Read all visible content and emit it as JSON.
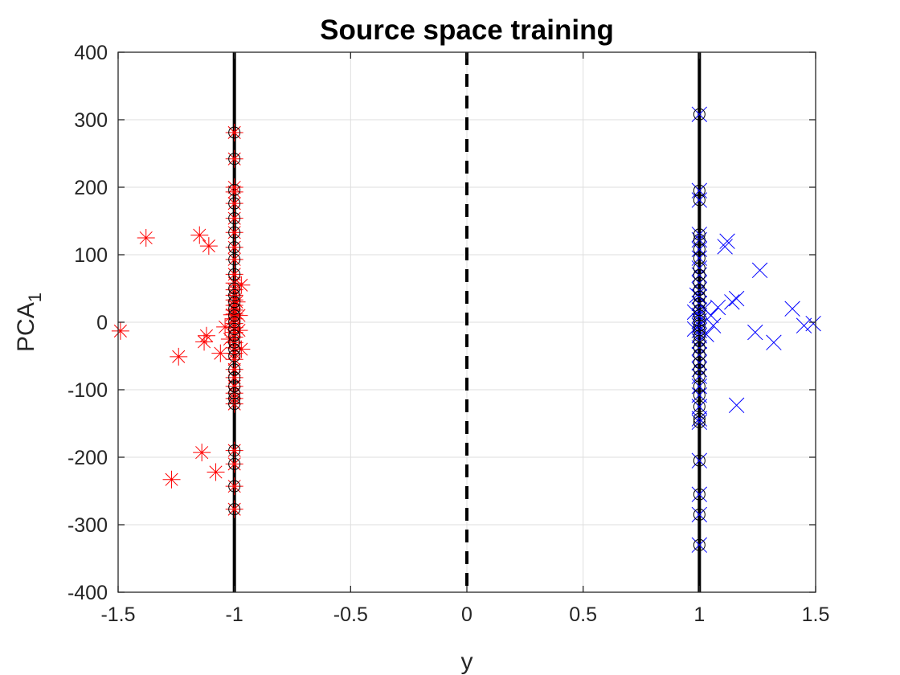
{
  "chart_data": {
    "type": "scatter",
    "title": "Source space training",
    "xlabel": "y",
    "ylabel": "PCA",
    "ylabel_subscript": "1",
    "xlim": [
      -1.5,
      1.5
    ],
    "ylim": [
      -400,
      400
    ],
    "xticks": [
      -1.5,
      -1,
      -0.5,
      0,
      0.5,
      1,
      1.5
    ],
    "xtick_labels": [
      "-1.5",
      "-1",
      "-0.5",
      "0",
      "0.5",
      "1",
      "1.5"
    ],
    "yticks": [
      -400,
      -300,
      -200,
      -100,
      0,
      100,
      200,
      300,
      400
    ],
    "ytick_labels": [
      "-400",
      "-300",
      "-200",
      "-100",
      "0",
      "100",
      "200",
      "300",
      "400"
    ],
    "grid": true,
    "colors": {
      "negative": "#ff0000",
      "positive": "#0000ff",
      "circle": "#000000",
      "line": "#000000",
      "grid": "#dedede"
    },
    "reference_lines": [
      {
        "x": -1,
        "style": "solid"
      },
      {
        "x": 0,
        "style": "dashed"
      },
      {
        "x": 1,
        "style": "solid"
      }
    ],
    "series": [
      {
        "marker": "star",
        "color": "#ff0000",
        "points": [
          [
            -1.49,
            -13
          ],
          [
            -1.38,
            125
          ],
          [
            -1.27,
            -233
          ],
          [
            -1.24,
            -51
          ],
          [
            -1.15,
            129
          ],
          [
            -1.14,
            -193
          ],
          [
            -1.13,
            -29
          ],
          [
            -1.12,
            -20
          ],
          [
            -1.11,
            113
          ],
          [
            -1.08,
            -222
          ],
          [
            -1.06,
            -46
          ],
          [
            -1.04,
            -7
          ],
          [
            -1.02,
            -25
          ],
          [
            -1.01,
            11
          ],
          [
            -1.0,
            281
          ],
          [
            -1.0,
            242
          ],
          [
            -1.0,
            200
          ],
          [
            -1.0,
            193
          ],
          [
            -1.0,
            176
          ],
          [
            -1.0,
            154
          ],
          [
            -1.0,
            133
          ],
          [
            -1.0,
            111
          ],
          [
            -1.0,
            93
          ],
          [
            -1.0,
            71
          ],
          [
            -1.0,
            58
          ],
          [
            -1.0,
            48
          ],
          [
            -1.0,
            40
          ],
          [
            -1.0,
            33
          ],
          [
            -1.0,
            25
          ],
          [
            -1.0,
            18
          ],
          [
            -1.0,
            12
          ],
          [
            -1.0,
            5
          ],
          [
            -1.0,
            -2
          ],
          [
            -1.0,
            -8
          ],
          [
            -1.0,
            -15
          ],
          [
            -1.0,
            -22
          ],
          [
            -1.0,
            -30
          ],
          [
            -1.0,
            -38
          ],
          [
            -1.0,
            -46
          ],
          [
            -1.0,
            -55
          ],
          [
            -1.0,
            -70
          ],
          [
            -1.0,
            -82
          ],
          [
            -1.0,
            -95
          ],
          [
            -1.0,
            -105
          ],
          [
            -1.0,
            -113
          ],
          [
            -1.0,
            -121
          ],
          [
            -1.0,
            -190
          ],
          [
            -1.0,
            -210
          ],
          [
            -1.0,
            -243
          ],
          [
            -1.0,
            -277
          ],
          [
            -0.99,
            30
          ],
          [
            -0.98,
            10
          ],
          [
            -0.98,
            -12
          ],
          [
            -0.97,
            -40
          ],
          [
            -0.97,
            55
          ]
        ]
      },
      {
        "marker": "x",
        "color": "#0000ff",
        "points": [
          [
            1.0,
            308
          ],
          [
            1.0,
            195
          ],
          [
            1.0,
            181
          ],
          [
            1.0,
            130
          ],
          [
            1.0,
            122
          ],
          [
            1.0,
            108
          ],
          [
            1.0,
            95
          ],
          [
            1.0,
            80
          ],
          [
            1.0,
            70
          ],
          [
            1.0,
            58
          ],
          [
            1.0,
            48
          ],
          [
            1.0,
            38
          ],
          [
            1.0,
            28
          ],
          [
            1.0,
            18
          ],
          [
            1.0,
            10
          ],
          [
            1.0,
            2
          ],
          [
            1.0,
            -5
          ],
          [
            1.0,
            -12
          ],
          [
            1.0,
            -20
          ],
          [
            1.0,
            -28
          ],
          [
            1.0,
            -38
          ],
          [
            1.0,
            -48
          ],
          [
            1.0,
            -60
          ],
          [
            1.0,
            -70
          ],
          [
            1.0,
            -80
          ],
          [
            1.0,
            -95
          ],
          [
            1.0,
            -108
          ],
          [
            1.0,
            -125
          ],
          [
            1.0,
            -143
          ],
          [
            1.0,
            -148
          ],
          [
            1.0,
            -205
          ],
          [
            1.0,
            -255
          ],
          [
            1.0,
            -285
          ],
          [
            1.0,
            -330
          ],
          [
            0.99,
            40
          ],
          [
            0.98,
            15
          ],
          [
            0.98,
            -10
          ],
          [
            1.02,
            20
          ],
          [
            1.03,
            -18
          ],
          [
            1.05,
            10
          ],
          [
            1.06,
            -5
          ],
          [
            1.08,
            22
          ],
          [
            1.11,
            112
          ],
          [
            1.12,
            120
          ],
          [
            1.14,
            30
          ],
          [
            1.16,
            35
          ],
          [
            1.16,
            -123
          ],
          [
            1.24,
            -15
          ],
          [
            1.26,
            77
          ],
          [
            1.32,
            -30
          ],
          [
            1.4,
            20
          ],
          [
            1.45,
            -5
          ],
          [
            1.49,
            -2
          ]
        ]
      },
      {
        "marker": "circle",
        "color": "#000000",
        "points": [
          [
            -1.0,
            281
          ],
          [
            -1.0,
            242
          ],
          [
            -1.0,
            196
          ],
          [
            -1.0,
            176
          ],
          [
            -1.0,
            154
          ],
          [
            -1.0,
            133
          ],
          [
            -1.0,
            111
          ],
          [
            -1.0,
            93
          ],
          [
            -1.0,
            71
          ],
          [
            -1.0,
            50
          ],
          [
            -1.0,
            40
          ],
          [
            -1.0,
            30
          ],
          [
            -1.0,
            20
          ],
          [
            -1.0,
            10
          ],
          [
            -1.0,
            0
          ],
          [
            -1.0,
            -10
          ],
          [
            -1.0,
            -20
          ],
          [
            -1.0,
            -30
          ],
          [
            -1.0,
            -40
          ],
          [
            -1.0,
            -50
          ],
          [
            -1.0,
            -70
          ],
          [
            -1.0,
            -82
          ],
          [
            -1.0,
            -95
          ],
          [
            -1.0,
            -105
          ],
          [
            -1.0,
            -113
          ],
          [
            -1.0,
            -121
          ],
          [
            -1.0,
            -190
          ],
          [
            -1.0,
            -210
          ],
          [
            -1.0,
            -243
          ],
          [
            -1.0,
            -277
          ],
          [
            1.0,
            308
          ],
          [
            1.0,
            195
          ],
          [
            1.0,
            181
          ],
          [
            1.0,
            130
          ],
          [
            1.0,
            122
          ],
          [
            1.0,
            108
          ],
          [
            1.0,
            95
          ],
          [
            1.0,
            80
          ],
          [
            1.0,
            70
          ],
          [
            1.0,
            58
          ],
          [
            1.0,
            48
          ],
          [
            1.0,
            38
          ],
          [
            1.0,
            28
          ],
          [
            1.0,
            18
          ],
          [
            1.0,
            10
          ],
          [
            1.0,
            2
          ],
          [
            1.0,
            -5
          ],
          [
            1.0,
            -12
          ],
          [
            1.0,
            -20
          ],
          [
            1.0,
            -28
          ],
          [
            1.0,
            -38
          ],
          [
            1.0,
            -48
          ],
          [
            1.0,
            -60
          ],
          [
            1.0,
            -70
          ],
          [
            1.0,
            -80
          ],
          [
            1.0,
            -95
          ],
          [
            1.0,
            -108
          ],
          [
            1.0,
            -125
          ],
          [
            1.0,
            -143
          ],
          [
            1.0,
            -148
          ],
          [
            1.0,
            -205
          ],
          [
            1.0,
            -255
          ],
          [
            1.0,
            -285
          ],
          [
            1.0,
            -330
          ]
        ]
      }
    ]
  }
}
